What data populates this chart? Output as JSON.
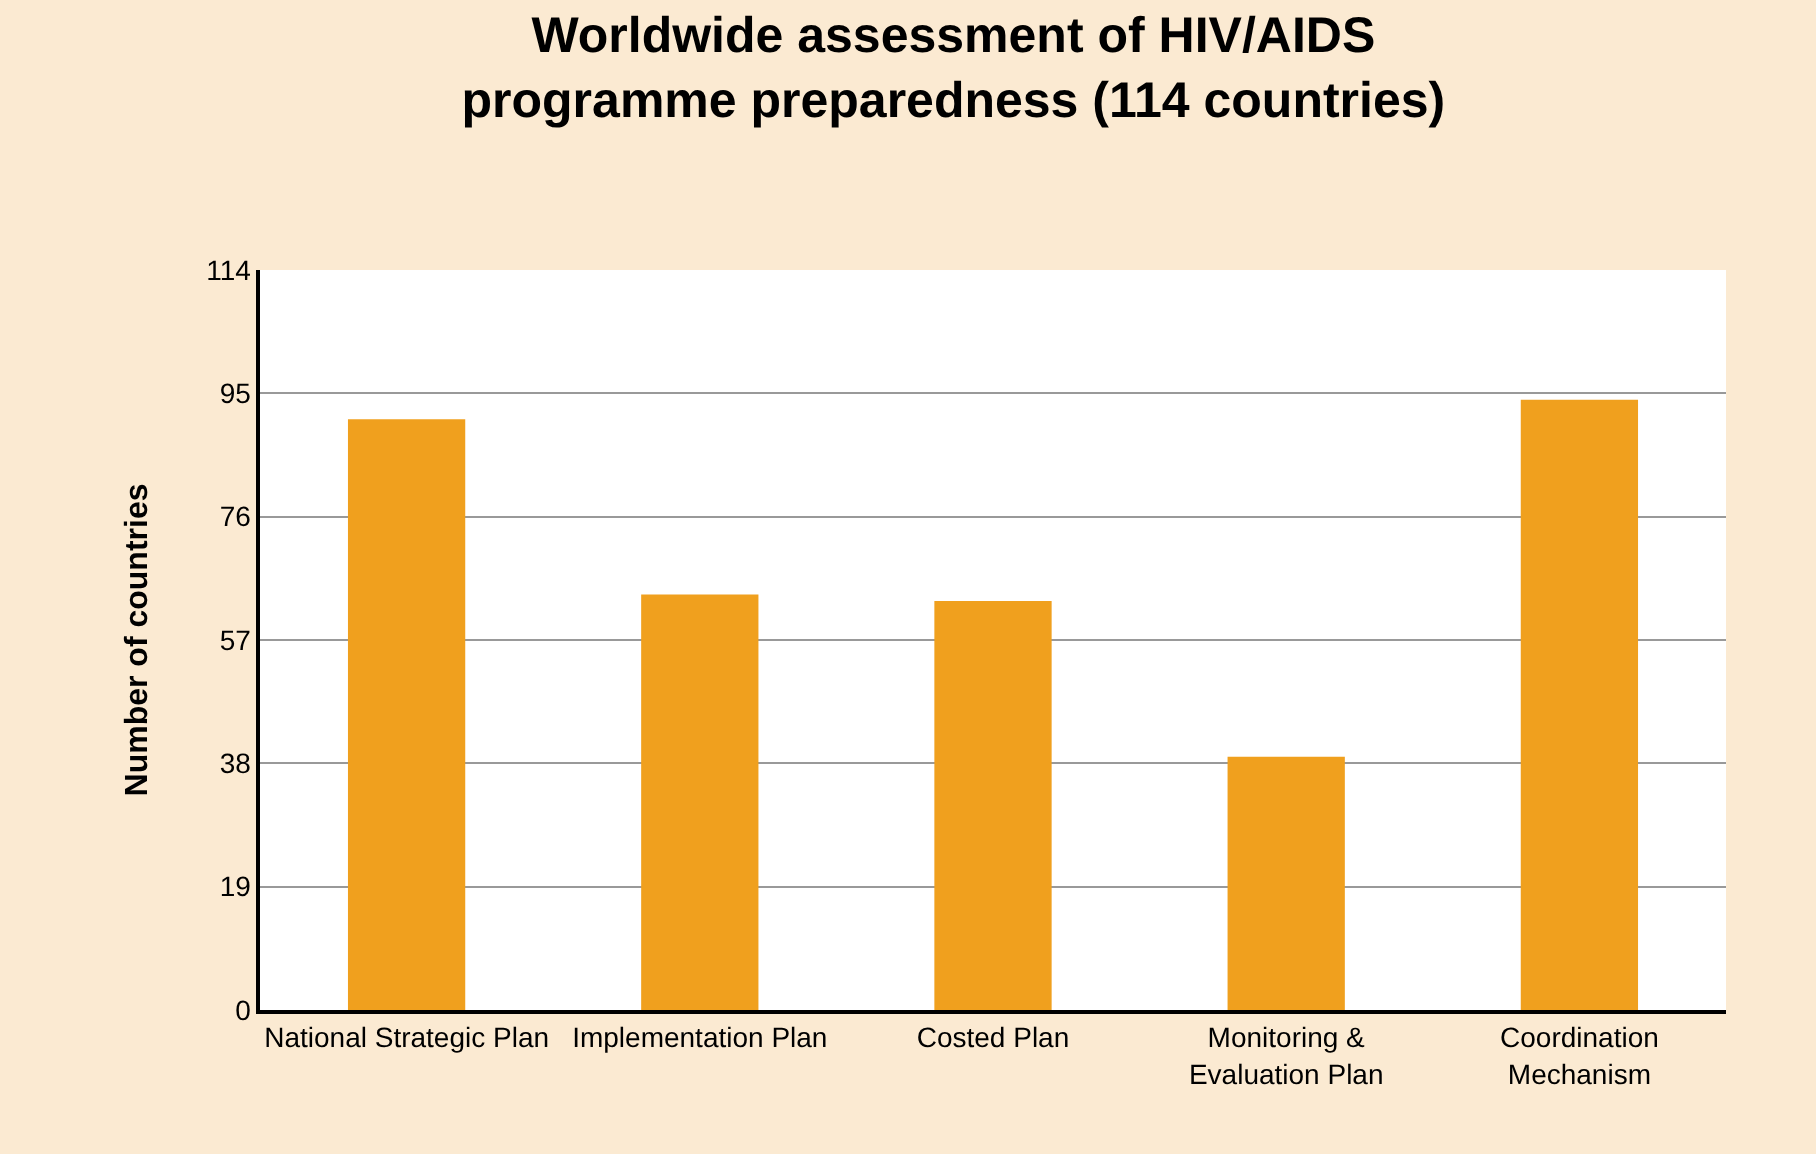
{
  "chart_data": {
    "type": "bar",
    "title": "Worldwide assessment of HIV/AIDS\nprogramme preparedness (114 countries)",
    "ylabel": "Number of countries",
    "categories": [
      "National Strategic Plan",
      "Implementation Plan",
      "Costed Plan",
      "Monitoring &\nEvaluation Plan",
      "Coordination\nMechanism"
    ],
    "values": [
      91,
      64,
      63,
      39,
      94
    ],
    "color": "#f0a01e",
    "ylim": [
      0,
      114
    ],
    "yticks": [
      0,
      19,
      38,
      57,
      76,
      95,
      114
    ],
    "grid": "y"
  }
}
